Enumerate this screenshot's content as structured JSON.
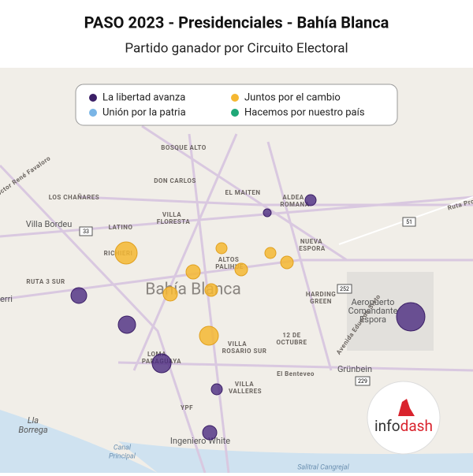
{
  "header": {
    "title": "PASO 2023 - Presidenciales - Bahía Blanca",
    "subtitle": "Partido ganador por Circuito Electoral"
  },
  "legend": {
    "items": [
      "La libertad avanza",
      "Juntos por el cambio",
      "Unión por la patria",
      "Hacemos por nuestro país"
    ]
  },
  "map": {
    "places": [
      "BOSQUE ALTO",
      "DON CARLOS",
      "EL MAITEN",
      "ALDEA",
      "ROMANA",
      "LOS CHAÑARES",
      "Villa Bordeu",
      "LATINO",
      "VILLA",
      "FLORESTA",
      "ALTOS",
      "PALIHUE",
      "NUEVA",
      "ESPORA",
      "RICHIERI",
      "RUTA 3 SUR",
      "Bahía Blanca",
      "HARDING",
      "GREEN",
      "Aeropuerto",
      "Comandante",
      "Espora",
      "12 DE",
      "OCTUBRE",
      "VILLA",
      "ROSARIO SUR",
      "LOMA",
      "PARAGUAYA",
      "Grünbein",
      "VILLA",
      "VALLERES",
      "YPF",
      "Ingeniero White",
      "Lla",
      "Borrega",
      "Canal",
      "Principal",
      "Salitral Cangrejal",
      "erri",
      "Ruta Pro",
      "Doctor René Favaloro",
      "Avenida Eduardo Sixto",
      "El Benteveo"
    ],
    "shields": [
      "33",
      "51",
      "252",
      "229"
    ]
  },
  "logo": {
    "part1": "info",
    "part2": "dash"
  }
}
